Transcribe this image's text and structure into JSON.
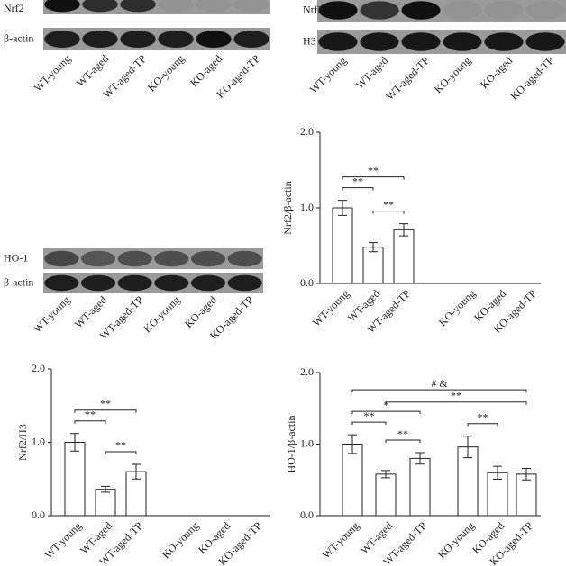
{
  "blots": [
    {
      "rows": [
        "Nrf2",
        "β-actin"
      ],
      "lanes": [
        "WT-young",
        "WT-aged",
        "WT-aged-TP",
        "KO-young",
        "KO-aged",
        "KO-aged-TP"
      ]
    },
    {
      "rows": [
        "Nrf2",
        "H3"
      ],
      "lanes": [
        "WT-young",
        "WT-aged",
        "WT-aged-TP",
        "KO-young",
        "KO-aged",
        "KO-aged-TP"
      ]
    },
    {
      "rows": [
        "HO-1",
        "β-actin"
      ],
      "lanes": [
        "WT-young",
        "WT-aged",
        "WT-aged-TP",
        "KO-young",
        "KO-aged",
        "KO-aged-TP"
      ]
    }
  ],
  "chart_data": [
    {
      "type": "bar",
      "y_label": "Nrf2/β-actin",
      "categories": [
        "WT-young",
        "WT-aged",
        "WT-aged-TP",
        "KO-young",
        "KO-aged",
        "KO-aged-TP"
      ],
      "values": [
        1.0,
        0.48,
        0.71,
        0,
        0,
        0
      ],
      "errors": [
        0.1,
        0.06,
        0.08,
        0,
        0,
        0
      ],
      "color": "#ffffff",
      "ylim": [
        0,
        2
      ],
      "yticks": [
        {
          "value": 0,
          "label": "0.0"
        },
        {
          "value": 1,
          "label": "1.0"
        },
        {
          "value": 2,
          "label": "2.0"
        }
      ],
      "annotations": [
        {
          "text": "**",
          "between": [
            "WT-young",
            "WT-aged"
          ]
        },
        {
          "text": "**",
          "between": [
            "WT-aged",
            "WT-aged-TP"
          ]
        },
        {
          "text": "**",
          "between": [
            "WT-young",
            "WT-aged-TP"
          ]
        }
      ]
    },
    {
      "type": "bar",
      "y_label": "Nrf2/H3",
      "categories": [
        "WT-young",
        "WT-aged",
        "WT-aged-TP",
        "KO-young",
        "KO-aged",
        "KO-aged-TP"
      ],
      "values": [
        1.0,
        0.36,
        0.6,
        0,
        0,
        0
      ],
      "errors": [
        0.12,
        0.04,
        0.1,
        0,
        0,
        0
      ],
      "color": "#ffffff",
      "ylim": [
        0,
        2
      ],
      "yticks": [
        {
          "value": 0,
          "label": "0.0"
        },
        {
          "value": 1,
          "label": "1.0"
        },
        {
          "value": 2,
          "label": "2.0"
        }
      ],
      "annotations": [
        {
          "text": "**",
          "between": [
            "WT-young",
            "WT-aged"
          ]
        },
        {
          "text": "**",
          "between": [
            "WT-aged",
            "WT-aged-TP"
          ]
        },
        {
          "text": "**",
          "between": [
            "WT-young",
            "WT-aged-TP"
          ]
        }
      ]
    },
    {
      "type": "bar",
      "y_label": "HO-1/β-actin",
      "categories": [
        "WT-young",
        "WT-aged",
        "WT-aged-TP",
        "KO-young",
        "KO-aged",
        "KO-aged-TP"
      ],
      "values": [
        1.0,
        0.58,
        0.8,
        0.96,
        0.6,
        0.58
      ],
      "errors": [
        0.13,
        0.05,
        0.08,
        0.15,
        0.09,
        0.08
      ],
      "color": "#ffffff",
      "ylim": [
        0,
        2
      ],
      "yticks": [
        {
          "value": 0,
          "label": "0.0"
        },
        {
          "value": 1,
          "label": "1.0"
        },
        {
          "value": 2,
          "label": "2.0"
        }
      ],
      "annotations": [
        {
          "text": "**",
          "between": [
            "WT-young",
            "WT-aged"
          ]
        },
        {
          "text": "**",
          "between": [
            "WT-aged",
            "WT-aged-TP"
          ]
        },
        {
          "text": "*",
          "between": [
            "WT-young",
            "WT-aged-TP"
          ]
        },
        {
          "text": "**",
          "between": [
            "KO-young",
            "KO-aged"
          ]
        },
        {
          "text": "**",
          "between": [
            "WT-aged",
            "KO-aged-TP"
          ]
        },
        {
          "text": "# &",
          "between": [
            "WT-young",
            "KO-aged-TP"
          ]
        }
      ]
    }
  ]
}
